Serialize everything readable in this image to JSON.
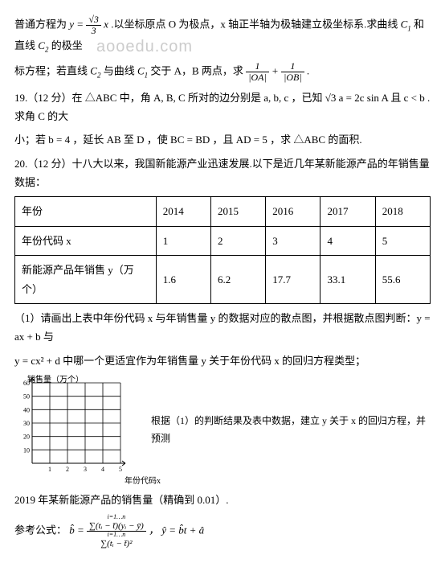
{
  "watermark": "aooedu.com",
  "p1_a": "普通方程为 ",
  "p1_eq_lhs": "y = ",
  "p1_eq_num": "√3",
  "p1_eq_den": "3",
  "p1_eq_rhs": " x",
  "p1_b": " .以坐标原点 O 为极点，x 轴正半轴为极轴建立极坐标系.求曲线 ",
  "p1_c1": "C",
  "p1_c1s": "1",
  "p1_c": " 和直线 ",
  "p1_c2": "C",
  "p1_c2s": "2",
  "p1_d": " 的极坐",
  "p2_a": "标方程；若直线 ",
  "p2_c2": "C",
  "p2_c2s": "2",
  "p2_b": " 与曲线 ",
  "p2_c1": "C",
  "p2_c1s": "1",
  "p2_c": " 交于 A，B 两点，求 ",
  "p2_frac1_num": "1",
  "p2_frac1_den": "|OA|",
  "p2_plus": " + ",
  "p2_frac2_num": "1",
  "p2_frac2_den": "|OB|",
  "p2_d": " .",
  "q19_a": "19.（12 分）在 △ABC 中，角 A, B, C 所对的边分别是 a, b, c ，已知 √3 a = 2c sin A 且 c < b .求角 C 的大",
  "q19_b": "小；若 b = 4 ，延长 AB 至 D ，使 BC = BD ，且 AD = 5 ，求 △ABC 的面积.",
  "q20_a": "20.（12 分）十八大以来，我国新能源产业迅速发展.以下是近几年某新能源产品的年销售量数据：",
  "table": {
    "headers": [
      "年份",
      "2014",
      "2015",
      "2016",
      "2017",
      "2018"
    ],
    "row2": [
      "年份代码 x",
      "1",
      "2",
      "3",
      "4",
      "5"
    ],
    "row3": [
      "新能源产品年销售 y（万个）",
      "1.6",
      "6.2",
      "17.7",
      "33.1",
      "55.6"
    ],
    "col_widths": [
      "34%",
      "13%",
      "13%",
      "13%",
      "13%",
      "14%"
    ]
  },
  "q20_1a": "（1）请画出上表中年份代码 x 与年销售量 y 的数据对应的散点图，并根据散点图判断：y = ax + b 与",
  "q20_1b": "y = cx² + d 中哪一个更适宜作为年销售量 y 关于年份代码 x 的回归方程类型；",
  "chart": {
    "ylabel": "销售量（万个）",
    "xlabel": "年份代码x",
    "yticks": [
      "60",
      "50",
      "40",
      "30",
      "20",
      "10"
    ],
    "xticks": [
      "1",
      "2",
      "3",
      "4",
      "5"
    ],
    "grid_color": "#000000",
    "bg": "#ffffff",
    "width": 130,
    "height": 120
  },
  "chart_caption": "根据（1）的判断结果及表中数据，建立 y 关于 x 的回归方程，并预测",
  "q20_2": "2019 年某新能源产品的销售量（精确到 0.01）.",
  "ref_a": "参考公式：",
  "ref_bhat": "b̂ = ",
  "ref_num": "∑(tᵢ − t̄)(yᵢ − ȳ)",
  "ref_num_lim": "i=1…n",
  "ref_den": "∑(tᵢ − t̄)²",
  "ref_den_lim": "i=1…n",
  "ref_b": " ，  ŷ = b̂t + â"
}
